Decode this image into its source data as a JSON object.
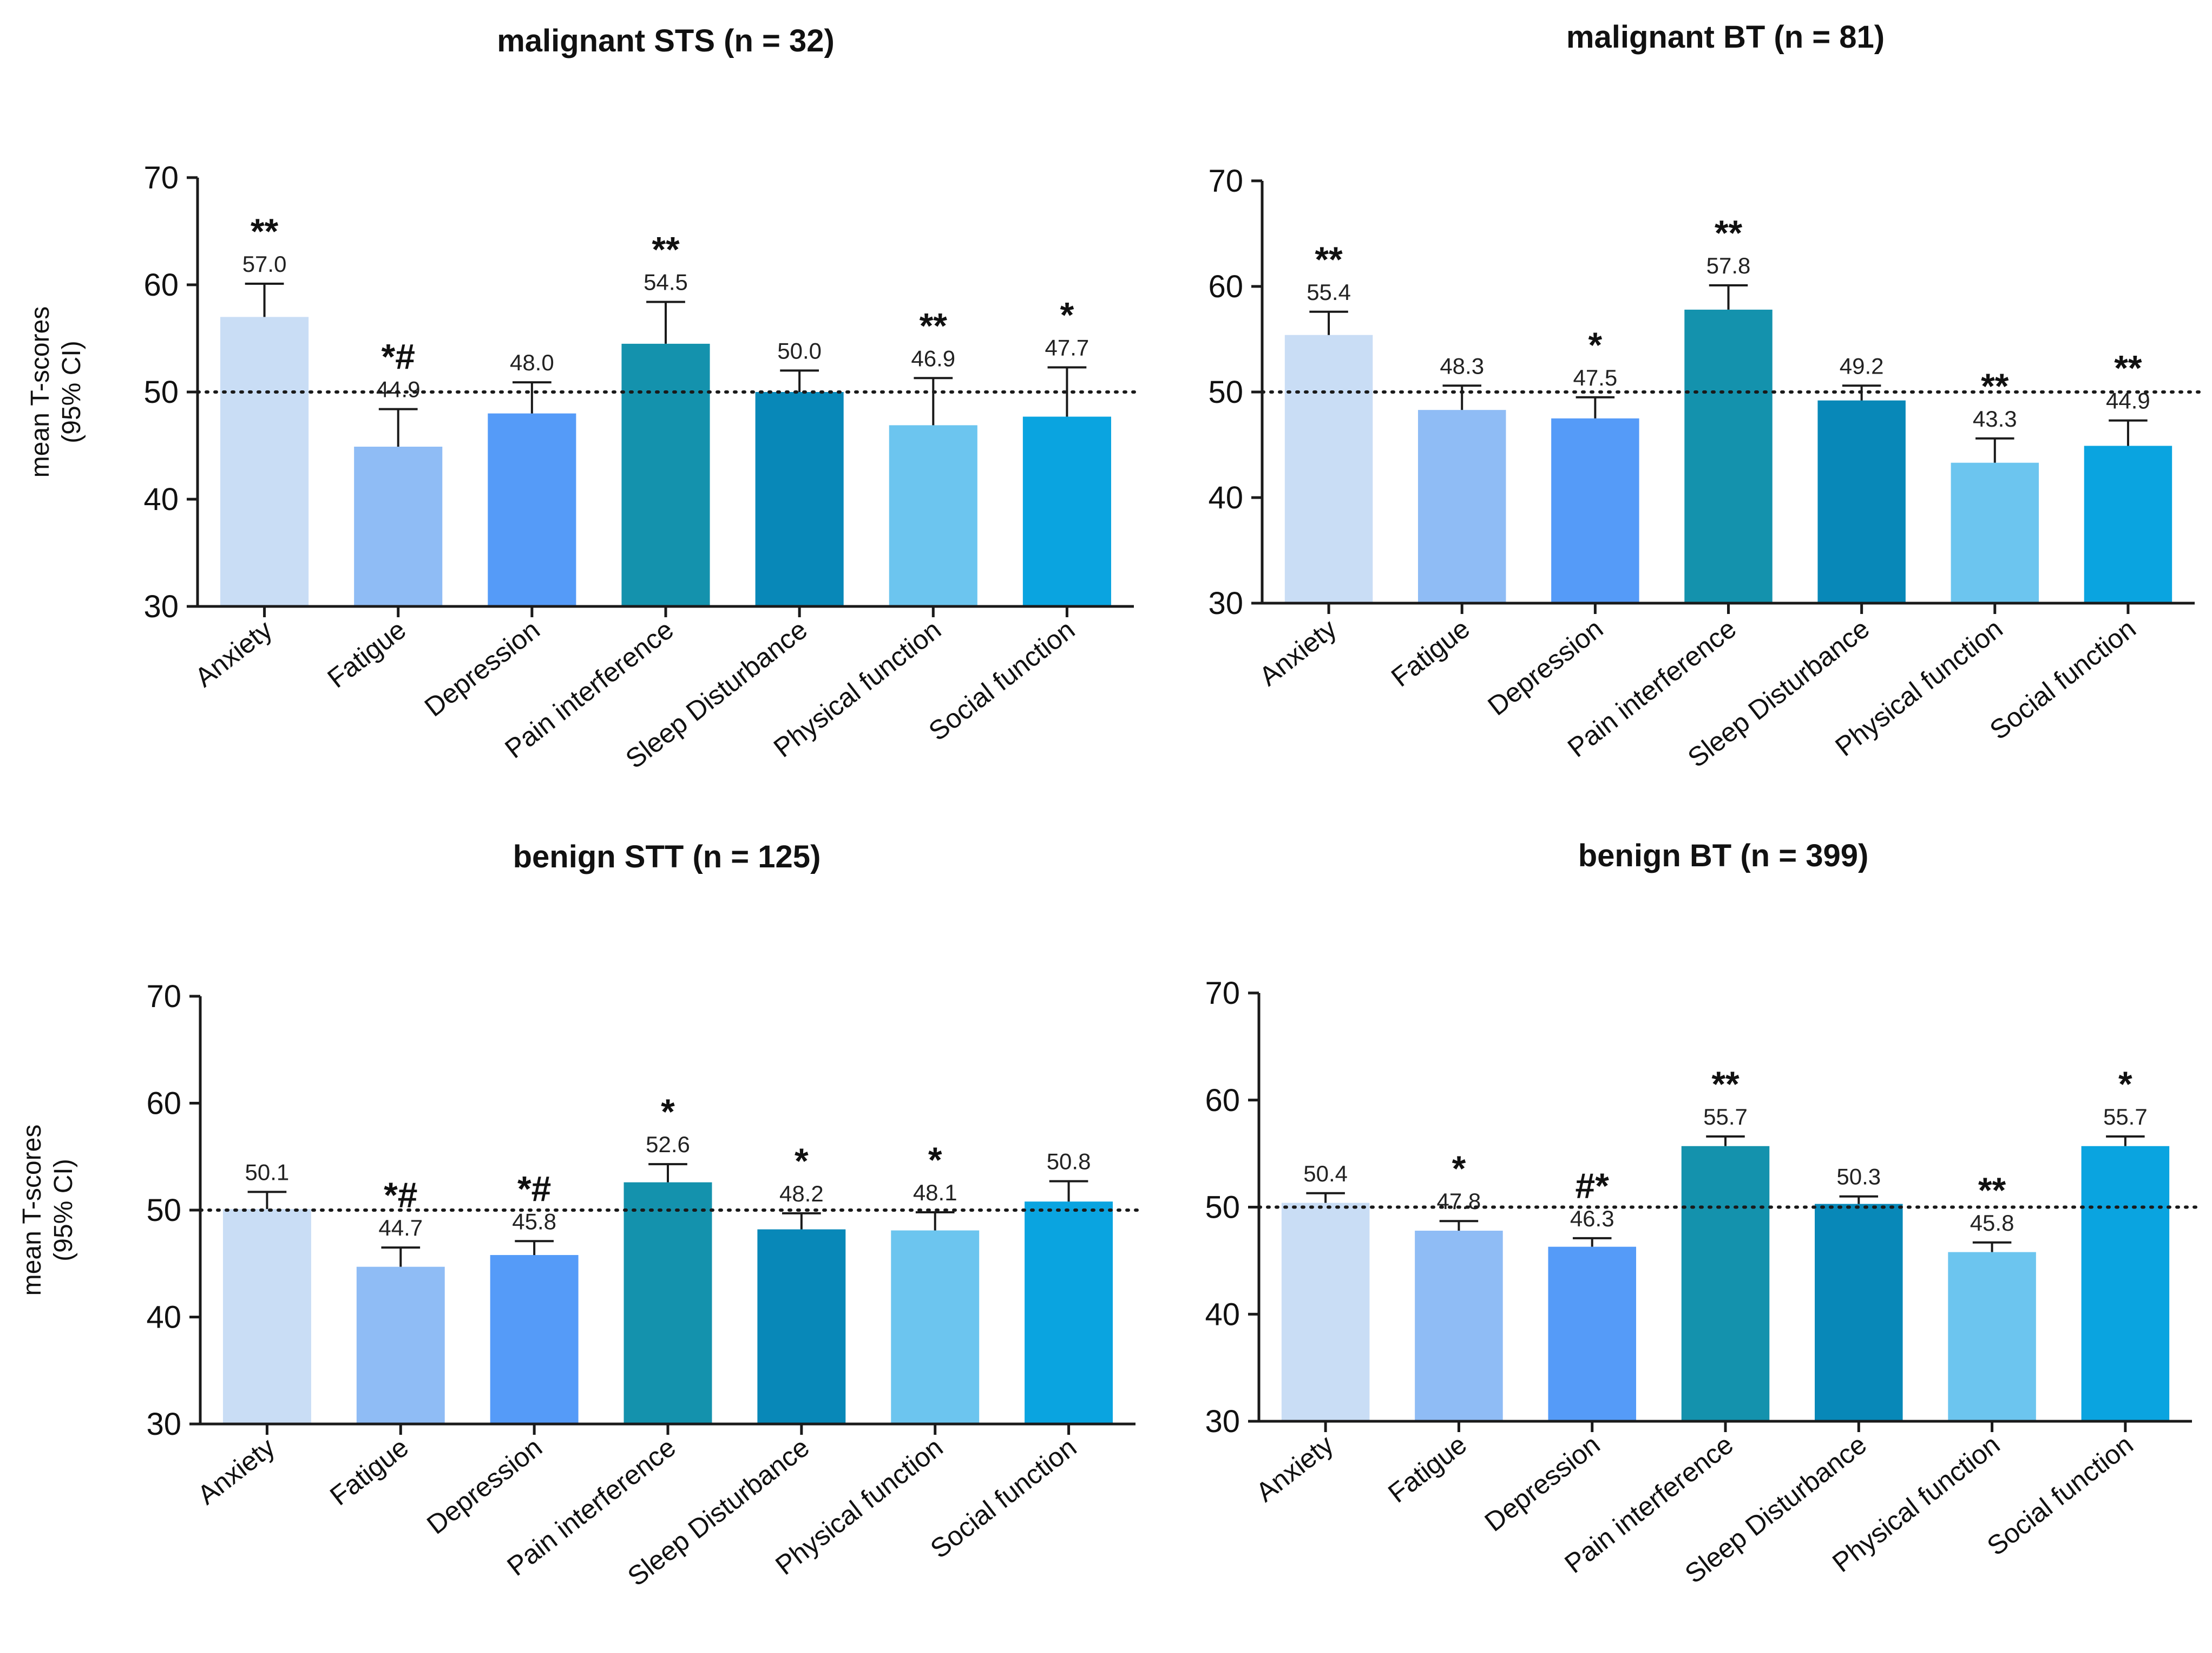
{
  "figure": {
    "ylabel_line1": "mean T-scores",
    "ylabel_line2": "(95% CI)",
    "reference_line": 50
  },
  "colors": [
    "#c9ddf5",
    "#8fbcf5",
    "#559bf8",
    "#1492ad",
    "#0888b8",
    "#6cc5ef",
    "#0aa4e0"
  ],
  "chart_data": [
    {
      "type": "bar",
      "title": "malignant STS (n = 32)",
      "ylabel": "mean T-scores (95% CI)",
      "ylim": [
        30,
        70
      ],
      "yticks": [
        "30",
        "40",
        "50",
        "60",
        "70"
      ],
      "categories": [
        "Anxiety",
        "Fatigue",
        "Depression",
        "Pain interference",
        "Sleep Disturbance",
        "Physical function",
        "Social function"
      ],
      "values": [
        57.0,
        44.9,
        48.0,
        54.5,
        50.0,
        46.9,
        47.7
      ],
      "labels": [
        "57.0",
        "44.9",
        "48.0",
        "54.5",
        "50.0",
        "46.9",
        "47.7"
      ],
      "ci_upper": [
        60.1,
        48.4,
        50.9,
        58.4,
        52.0,
        51.3,
        52.3
      ],
      "significance": [
        "**",
        "*#",
        "",
        "**",
        "",
        "**",
        "*"
      ]
    },
    {
      "type": "bar",
      "title": "malignant BT (n = 81)",
      "ylabel": "",
      "ylim": [
        30,
        70
      ],
      "yticks": [
        "30",
        "40",
        "50",
        "60",
        "70"
      ],
      "categories": [
        "Anxiety",
        "Fatigue",
        "Depression",
        "Pain interference",
        "Sleep Disturbance",
        "Physical function",
        "Social function"
      ],
      "values": [
        55.4,
        48.3,
        47.5,
        57.8,
        49.2,
        43.3,
        44.9
      ],
      "labels": [
        "55.4",
        "48.3",
        "47.5",
        "57.8",
        "49.2",
        "43.3",
        "44.9"
      ],
      "ci_upper": [
        57.6,
        50.6,
        49.5,
        60.1,
        50.6,
        45.6,
        47.3
      ],
      "significance": [
        "**",
        "",
        "*",
        "**",
        "",
        "**",
        "**"
      ]
    },
    {
      "type": "bar",
      "title": "benign STT (n = 125)",
      "ylabel": "mean T-scores (95% CI)",
      "ylim": [
        30,
        70
      ],
      "yticks": [
        "30",
        "40",
        "50",
        "60",
        "70"
      ],
      "categories": [
        "Anxiety",
        "Fatigue",
        "Depression",
        "Pain interference",
        "Sleep Disturbance",
        "Physical function",
        "Social function"
      ],
      "values": [
        50.1,
        44.7,
        45.8,
        52.6,
        48.2,
        48.1,
        50.8
      ],
      "labels": [
        "50.1",
        "44.7",
        "45.8",
        "52.6",
        "48.2",
        "48.1",
        "50.8"
      ],
      "ci_upper": [
        51.7,
        46.5,
        47.1,
        54.3,
        49.7,
        49.8,
        52.7
      ],
      "significance": [
        "",
        "*#",
        "*#",
        "*",
        "*",
        "*",
        ""
      ]
    },
    {
      "type": "bar",
      "title": "benign BT (n = 399)",
      "ylabel": "",
      "ylim": [
        30,
        70
      ],
      "yticks": [
        "30",
        "40",
        "50",
        "60",
        "70"
      ],
      "categories": [
        "Anxiety",
        "Fatigue",
        "Depression",
        "Pain interference",
        "Sleep Disturbance",
        "Physical function",
        "Social function"
      ],
      "values": [
        50.4,
        47.8,
        46.3,
        55.7,
        50.3,
        45.8,
        55.7
      ],
      "labels": [
        "50.4",
        "47.8",
        "46.3",
        "55.7",
        "50.3",
        "45.8",
        "55.7"
      ],
      "ci_upper": [
        51.3,
        48.7,
        47.1,
        56.6,
        51.0,
        46.7,
        56.6
      ],
      "significance": [
        "",
        "*",
        "#*",
        "**",
        "",
        "**",
        "*"
      ]
    }
  ]
}
